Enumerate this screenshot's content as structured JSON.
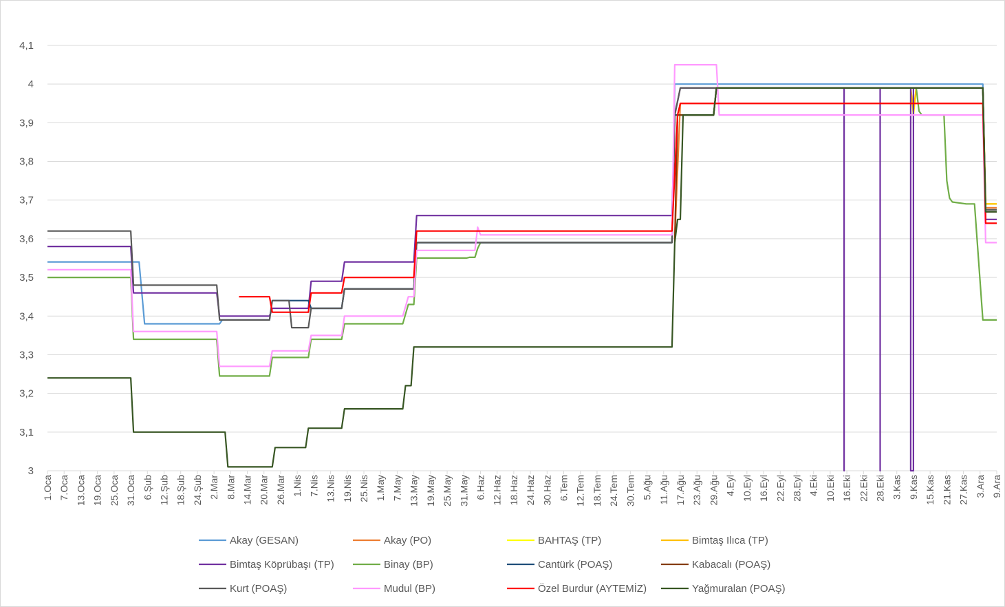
{
  "chart_data": {
    "type": "line",
    "title": "",
    "xlabel": "",
    "ylabel": "",
    "ylim": [
      3.0,
      4.1
    ],
    "yticks": [
      "3",
      "3,1",
      "3,2",
      "3,3",
      "3,4",
      "3,5",
      "3,6",
      "3,7",
      "3,8",
      "3,9",
      "4",
      "4,1"
    ],
    "x_tick_labels": [
      "1.Oca",
      "7.Oca",
      "13.Oca",
      "19.Oca",
      "25.Oca",
      "31.Oca",
      "6.Şub",
      "12.Şub",
      "18.Şub",
      "24.Şub",
      "2.Mar",
      "8.Mar",
      "14.Mar",
      "20.Mar",
      "26.Mar",
      "1.Nis",
      "7.Nis",
      "13.Nis",
      "19.Nis",
      "25.Nis",
      "1.May",
      "7.May",
      "13.May",
      "19.May",
      "25.May",
      "31.May",
      "6.Haz",
      "12.Haz",
      "18.Haz",
      "24.Haz",
      "30.Haz",
      "6.Tem",
      "12.Tem",
      "18.Tem",
      "24.Tem",
      "30.Tem",
      "5.Ağu",
      "11.Ağu",
      "17.Ağu",
      "23.Ağu",
      "29.Ağu",
      "4.Eyl",
      "10.Eyl",
      "16.Eyl",
      "22.Eyl",
      "28.Eyl",
      "4.Eki",
      "10.Eki",
      "16.Eki",
      "22.Eki",
      "28.Eki",
      "3.Kas",
      "9.Kas",
      "15.Kas",
      "21.Kas",
      "27.Kas",
      "3.Ara",
      "9.Ara"
    ],
    "grid": "horizontal",
    "legend_position": "bottom",
    "series": [
      {
        "name": "Akay (GESAN)",
        "color": "#5b9bd5",
        "points": [
          [
            "1.Oca",
            3.54
          ],
          [
            "3.Şub",
            3.54
          ],
          [
            "5.Şub",
            3.38
          ],
          [
            "4.Mar",
            3.38
          ],
          [
            "5.Mar",
            3.39
          ],
          [
            "22.Mar",
            3.39
          ],
          [
            "23.Mar",
            3.44
          ],
          [
            "5.Nis",
            3.44
          ],
          [
            "6.Nis",
            3.42
          ],
          [
            "17.Nis",
            3.42
          ],
          [
            "18.Nis",
            3.47
          ],
          [
            "13.May",
            3.47
          ],
          [
            "14.May",
            3.59
          ],
          [
            "14.Ağu",
            3.59
          ],
          [
            "15.Ağu",
            4.0
          ],
          [
            "4.Ara",
            4.0
          ],
          [
            "5.Ara",
            3.68
          ],
          [
            "9.Ara",
            3.68
          ]
        ]
      },
      {
        "name": "Akay (PO)",
        "color": "#ed7d31",
        "points": [
          [
            "15.Ağu",
            3.6
          ],
          [
            "17.Ağu",
            3.95
          ],
          [
            "4.Ara",
            3.95
          ],
          [
            "5.Ara",
            3.68
          ],
          [
            "9.Ara",
            3.68
          ]
        ]
      },
      {
        "name": "BAHTAŞ (TP)",
        "color": "#ffff00",
        "points": [
          [
            "8.Kas",
            3.99
          ],
          [
            "9.Kas",
            3.92
          ],
          [
            "10.Kas",
            3.99
          ],
          [
            "4.Ara",
            3.99
          ],
          [
            "5.Ara",
            3.69
          ],
          [
            "9.Ara",
            3.69
          ]
        ]
      },
      {
        "name": "Bimtaş Ilıca (TP)",
        "color": "#ffc000",
        "points": [
          [
            "8.Kas",
            3.99
          ],
          [
            "9.Kas",
            3.93
          ],
          [
            "10.Kas",
            3.99
          ],
          [
            "4.Ara",
            3.99
          ],
          [
            "5.Ara",
            3.69
          ],
          [
            "9.Ara",
            3.69
          ]
        ]
      },
      {
        "name": "Bimtaş Köprübaşı (TP)",
        "color": "#7030a0",
        "points": [
          [
            "1.Oca",
            3.58
          ],
          [
            "31.Oca",
            3.58
          ],
          [
            "1.Şub",
            3.46
          ],
          [
            "3.Mar",
            3.46
          ],
          [
            "4.Mar",
            3.4
          ],
          [
            "22.Mar",
            3.4
          ],
          [
            "23.Mar",
            3.42
          ],
          [
            "5.Nis",
            3.42
          ],
          [
            "6.Nis",
            3.49
          ],
          [
            "17.Nis",
            3.49
          ],
          [
            "18.Nis",
            3.54
          ],
          [
            "13.May",
            3.54
          ],
          [
            "14.May",
            3.66
          ],
          [
            "14.Ağu",
            3.66
          ],
          [
            "15.Ağu",
            3.92
          ],
          [
            "17.Ağu",
            3.99
          ],
          [
            "15.Eki",
            3.99
          ],
          [
            "15.Eki",
            3.0
          ],
          [
            "15.Eki",
            3.99
          ],
          [
            "28.Eki",
            3.99
          ],
          [
            "28.Eki",
            3.0
          ],
          [
            "28.Eki",
            3.99
          ],
          [
            "8.Kas",
            3.99
          ],
          [
            "8.Kas",
            3.0
          ],
          [
            "9.Kas",
            3.0
          ],
          [
            "9.Kas",
            3.99
          ],
          [
            "4.Ara",
            3.99
          ],
          [
            "5.Ara",
            3.65
          ],
          [
            "9.Ara",
            3.65
          ]
        ]
      },
      {
        "name": "Binay (BP)",
        "color": "#70ad47",
        "points": [
          [
            "1.Oca",
            3.5
          ],
          [
            "31.Oca",
            3.5
          ],
          [
            "1.Şub",
            3.34
          ],
          [
            "3.Mar",
            3.34
          ],
          [
            "4.Mar",
            3.245
          ],
          [
            "22.Mar",
            3.245
          ],
          [
            "23.Mar",
            3.293
          ],
          [
            "5.Nis",
            3.293
          ],
          [
            "6.Nis",
            3.34
          ],
          [
            "17.Nis",
            3.34
          ],
          [
            "18.Nis",
            3.38
          ],
          [
            "9.May",
            3.38
          ],
          [
            "11.May",
            3.43
          ],
          [
            "13.May",
            3.43
          ],
          [
            "14.May",
            3.55
          ],
          [
            "1.Haz",
            3.55
          ],
          [
            "2.Haz",
            3.552
          ],
          [
            "4.Haz",
            3.552
          ],
          [
            "5.Haz",
            3.575
          ],
          [
            "6.Haz",
            3.59
          ],
          [
            "14.Ağu",
            3.59
          ],
          [
            "15.Ağu",
            3.92
          ],
          [
            "29.Ağu",
            3.92
          ],
          [
            "30.Ağu",
            3.99
          ],
          [
            "10.Kas",
            3.99
          ],
          [
            "11.Kas",
            3.93
          ],
          [
            "12.Kas",
            3.92
          ],
          [
            "20.Kas",
            3.92
          ],
          [
            "21.Kas",
            3.75
          ],
          [
            "22.Kas",
            3.705
          ],
          [
            "23.Kas",
            3.695
          ],
          [
            "28.Kas",
            3.69
          ],
          [
            "1.Ara",
            3.69
          ],
          [
            "4.Ara",
            3.39
          ],
          [
            "9.Ara",
            3.39
          ]
        ]
      },
      {
        "name": "Cantürk (POAŞ)",
        "color": "#1f4e79",
        "points": [
          [
            "23.Mar",
            3.44
          ],
          [
            "5.Nis",
            3.44
          ],
          [
            "6.Nis",
            3.42
          ],
          [
            "17.Nis",
            3.42
          ],
          [
            "18.Nis",
            3.47
          ],
          [
            "13.May",
            3.47
          ],
          [
            "14.May",
            3.59
          ],
          [
            "14.Ağu",
            3.59
          ],
          [
            "15.Ağu",
            3.92
          ],
          [
            "29.Ağu",
            3.92
          ],
          [
            "30.Ağu",
            3.99
          ],
          [
            "4.Ara",
            3.99
          ],
          [
            "5.Ara",
            3.67
          ],
          [
            "9.Ara",
            3.67
          ]
        ]
      },
      {
        "name": "Kabacalı (POAŞ)",
        "color": "#843c0c",
        "points": [
          [
            "15.Ağu",
            3.59
          ],
          [
            "16.Ağu",
            3.92
          ],
          [
            "29.Ağu",
            3.92
          ],
          [
            "30.Ağu",
            3.99
          ],
          [
            "4.Ara",
            3.99
          ],
          [
            "5.Ara",
            3.67
          ],
          [
            "9.Ara",
            3.67
          ]
        ]
      },
      {
        "name": "Kurt (POAŞ)",
        "color": "#595959",
        "points": [
          [
            "1.Oca",
            3.62
          ],
          [
            "31.Oca",
            3.62
          ],
          [
            "1.Şub",
            3.48
          ],
          [
            "3.Mar",
            3.48
          ],
          [
            "4.Mar",
            3.39
          ],
          [
            "22.Mar",
            3.39
          ],
          [
            "23.Mar",
            3.44
          ],
          [
            "29.Mar",
            3.44
          ],
          [
            "30.Mar",
            3.37
          ],
          [
            "5.Nis",
            3.37
          ],
          [
            "6.Nis",
            3.42
          ],
          [
            "17.Nis",
            3.42
          ],
          [
            "18.Nis",
            3.47
          ],
          [
            "13.May",
            3.47
          ],
          [
            "14.May",
            3.59
          ],
          [
            "14.Ağu",
            3.59
          ],
          [
            "15.Ağu",
            3.92
          ],
          [
            "17.Ağu",
            3.99
          ],
          [
            "4.Ara",
            3.99
          ],
          [
            "5.Ara",
            3.675
          ],
          [
            "9.Ara",
            3.675
          ]
        ]
      },
      {
        "name": "Mudul (BP)",
        "color": "#ff99ff",
        "points": [
          [
            "1.Oca",
            3.52
          ],
          [
            "31.Oca",
            3.52
          ],
          [
            "1.Şub",
            3.36
          ],
          [
            "3.Mar",
            3.36
          ],
          [
            "4.Mar",
            3.27
          ],
          [
            "22.Mar",
            3.27
          ],
          [
            "23.Mar",
            3.31
          ],
          [
            "5.Nis",
            3.31
          ],
          [
            "6.Nis",
            3.35
          ],
          [
            "17.Nis",
            3.35
          ],
          [
            "18.Nis",
            3.4
          ],
          [
            "9.May",
            3.4
          ],
          [
            "11.May",
            3.45
          ],
          [
            "13.May",
            3.45
          ],
          [
            "14.May",
            3.57
          ],
          [
            "4.Haz",
            3.57
          ],
          [
            "5.Haz",
            3.63
          ],
          [
            "6.Haz",
            3.61
          ],
          [
            "14.Ağu",
            3.61
          ],
          [
            "15.Ağu",
            4.05
          ],
          [
            "30.Ağu",
            4.05
          ],
          [
            "31.Ağu",
            3.92
          ],
          [
            "4.Ara",
            3.92
          ],
          [
            "5.Ara",
            3.59
          ],
          [
            "9.Ara",
            3.59
          ]
        ]
      },
      {
        "name": "Özel Burdur (AYTEMİZ)",
        "color": "#ff0000",
        "points": [
          [
            "11.Mar",
            3.45
          ],
          [
            "22.Mar",
            3.45
          ],
          [
            "23.Mar",
            3.41
          ],
          [
            "5.Nis",
            3.41
          ],
          [
            "6.Nis",
            3.46
          ],
          [
            "17.Nis",
            3.46
          ],
          [
            "18.Nis",
            3.5
          ],
          [
            "13.May",
            3.5
          ],
          [
            "14.May",
            3.62
          ],
          [
            "14.Ağu",
            3.62
          ],
          [
            "16.Ağu",
            3.92
          ],
          [
            "17.Ağu",
            3.95
          ],
          [
            "4.Ara",
            3.95
          ],
          [
            "5.Ara",
            3.64
          ],
          [
            "9.Ara",
            3.64
          ]
        ]
      },
      {
        "name": "Yağmuralan (POAŞ)",
        "color": "#375623",
        "points": [
          [
            "1.Oca",
            3.24
          ],
          [
            "31.Oca",
            3.24
          ],
          [
            "1.Şub",
            3.1
          ],
          [
            "6.Mar",
            3.1
          ],
          [
            "7.Mar",
            3.01
          ],
          [
            "23.Mar",
            3.01
          ],
          [
            "24.Mar",
            3.06
          ],
          [
            "4.Nis",
            3.06
          ],
          [
            "5.Nis",
            3.11
          ],
          [
            "17.Nis",
            3.11
          ],
          [
            "18.Nis",
            3.16
          ],
          [
            "9.May",
            3.16
          ],
          [
            "10.May",
            3.22
          ],
          [
            "12.May",
            3.22
          ],
          [
            "13.May",
            3.32
          ],
          [
            "14.Ağu",
            3.32
          ],
          [
            "15.Ağu",
            3.59
          ],
          [
            "16.Ağu",
            3.65
          ],
          [
            "17.Ağu",
            3.65
          ],
          [
            "18.Ağu",
            3.92
          ],
          [
            "29.Ağu",
            3.92
          ],
          [
            "30.Ağu",
            3.99
          ],
          [
            "4.Ara",
            3.99
          ],
          [
            "5.Ara",
            3.67
          ],
          [
            "9.Ara",
            3.67
          ]
        ]
      }
    ]
  }
}
